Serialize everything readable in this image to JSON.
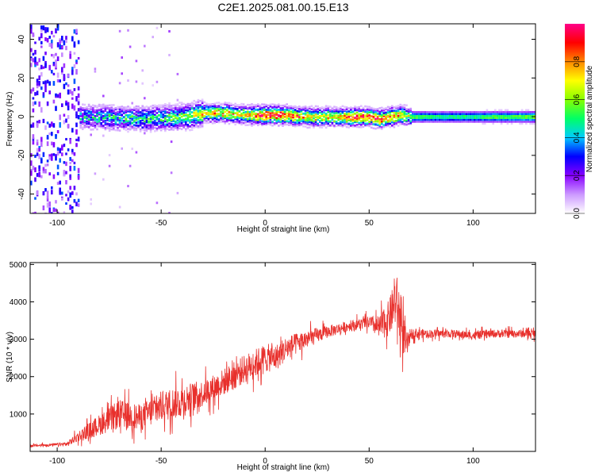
{
  "figure_title": "C2E1.2025.081.00.15.E13",
  "chart_data": [
    {
      "type": "heatmap",
      "title": "",
      "xlabel": "Height of straight line (km)",
      "ylabel": "Frequency (Hz)",
      "xlim": [
        -113,
        130
      ],
      "ylim": [
        -50,
        48
      ],
      "xticks": [
        -100,
        -50,
        0,
        50,
        100
      ],
      "yticks": [
        -40,
        -20,
        0,
        20,
        40
      ],
      "colorbar": {
        "label": "Normalized spectral amplitude",
        "range": [
          0,
          1
        ],
        "ticks": [
          0.0,
          0.2,
          0.4,
          0.6,
          0.8
        ],
        "colors": [
          "#ffffff",
          "#cc99ff",
          "#8800ff",
          "#0000ff",
          "#00ccff",
          "#00ff66",
          "#88ff00",
          "#ffff00",
          "#ff8800",
          "#ff0000",
          "#ff0088"
        ]
      },
      "ridge": {
        "x": [
          -95,
          -80,
          -60,
          -40,
          -30,
          -20,
          -10,
          0,
          10,
          20,
          30,
          40,
          50,
          55,
          60,
          65,
          70,
          80,
          90,
          100,
          110,
          120,
          130
        ],
        "frequency": [
          0,
          0,
          -1,
          0,
          2,
          2,
          1,
          1,
          1,
          0,
          0,
          0,
          0,
          -1,
          0,
          1,
          0,
          0,
          0,
          0,
          0,
          0,
          0
        ],
        "amplitude": [
          0.35,
          0.4,
          0.45,
          0.5,
          0.7,
          0.75,
          0.7,
          0.95,
          0.9,
          0.75,
          0.7,
          0.85,
          0.9,
          0.85,
          0.8,
          0.75,
          0.55,
          0.5,
          0.5,
          0.5,
          0.55,
          0.55,
          0.6
        ]
      }
    },
    {
      "type": "line",
      "title": "",
      "xlabel": "Height of straight line (km)",
      "ylabel": "SNR (10 * v/v)",
      "xlim": [
        -113,
        130
      ],
      "ylim": [
        0,
        5050
      ],
      "xticks": [
        -100,
        -50,
        0,
        50,
        100
      ],
      "yticks": [
        1000,
        2000,
        3000,
        4000,
        5000
      ],
      "color": "#e8302c",
      "series": [
        {
          "x": [
            -113,
            -100,
            -95,
            -90,
            -80,
            -70,
            -60,
            -50,
            -40,
            -30,
            -20,
            -10,
            0,
            5,
            10,
            20,
            30,
            40,
            50,
            55,
            60,
            63,
            65,
            68,
            70,
            80,
            90,
            100,
            110,
            120,
            130
          ],
          "y": [
            150,
            180,
            200,
            400,
            700,
            1000,
            900,
            1200,
            1350,
            1550,
            1850,
            2200,
            2500,
            2500,
            2750,
            3000,
            3200,
            3350,
            3450,
            3300,
            3600,
            4100,
            3500,
            2800,
            3150,
            3150,
            3150,
            3100,
            3150,
            3150,
            3150
          ],
          "spread": [
            60,
            80,
            120,
            250,
            500,
            700,
            650,
            750,
            800,
            650,
            650,
            700,
            700,
            650,
            600,
            450,
            300,
            250,
            300,
            600,
            900,
            1300,
            1300,
            700,
            250,
            200,
            200,
            200,
            200,
            200,
            200
          ]
        }
      ]
    }
  ]
}
